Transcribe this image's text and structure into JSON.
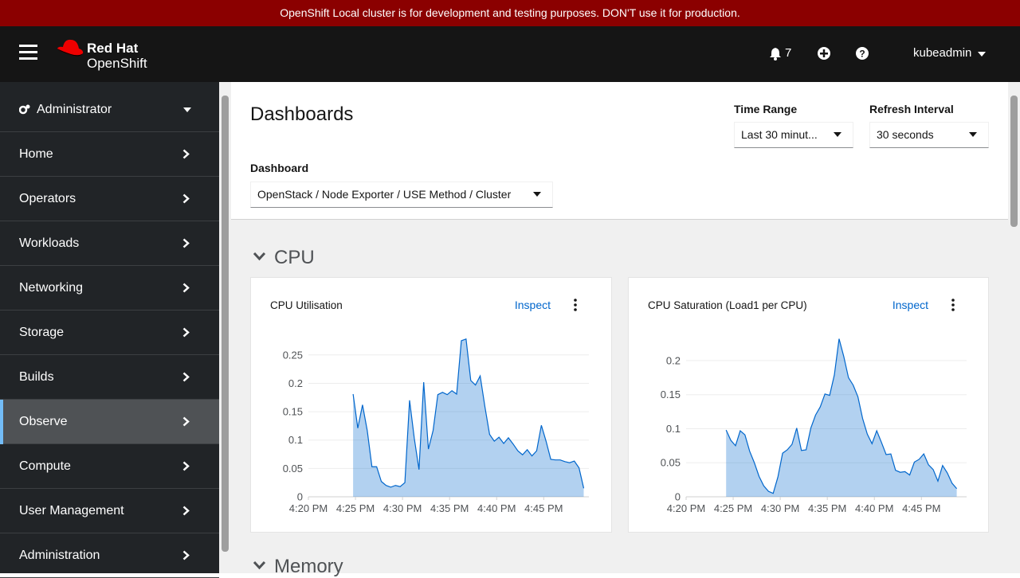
{
  "banner": "OpenShift Local cluster is for development and testing purposes. DON'T use it for production.",
  "header": {
    "brand": [
      "Red Hat",
      "OpenShift"
    ],
    "notifications": 7,
    "user": "kubeadmin"
  },
  "sidebar": {
    "perspective": "Administrator",
    "active_index": 6,
    "nav": [
      "Home",
      "Operators",
      "Workloads",
      "Networking",
      "Storage",
      "Builds",
      "Observe",
      "Compute",
      "User Management",
      "Administration"
    ]
  },
  "page": {
    "title": "Dashboards",
    "time_range": {
      "label": "Time Range",
      "value": "Last 30 minut..."
    },
    "refresh": {
      "label": "Refresh Interval",
      "value": "30 seconds"
    },
    "dashboard": {
      "label": "Dashboard",
      "value": "OpenStack / Node Exporter / USE Method / Cluster"
    }
  },
  "sections": [
    "CPU",
    "Memory"
  ],
  "chart_data": [
    {
      "type": "area",
      "title": "CPU Utilisation",
      "link": "Inspect",
      "color": "#06c",
      "grid": true,
      "x": [
        984.75,
        985.25,
        985.75,
        986.25,
        986.75,
        987.25,
        987.75,
        988.25,
        988.75,
        989.25,
        989.75,
        990.25,
        990.75,
        991.25,
        991.75,
        992.25,
        992.75,
        993.25,
        993.75,
        994.25,
        994.75,
        995.25,
        995.75,
        996.25,
        996.75,
        997.25,
        997.75,
        998.25,
        998.75,
        999.25,
        999.75,
        1000.25,
        1000.75,
        1001.25,
        1001.75,
        1002.25,
        1002.75,
        1003.25,
        1003.75,
        1004.25,
        1004.75,
        1005.25,
        1005.75,
        1006.25,
        1006.75,
        1007.25,
        1007.75,
        1008.25,
        1008.75,
        1009.25
      ],
      "values": [
        0.181,
        0.121,
        0.162,
        0.117,
        0.053,
        0.053,
        0.027,
        0.02,
        0.017,
        0.02,
        0.018,
        0.025,
        0.17,
        0.103,
        0.048,
        0.202,
        0.084,
        0.117,
        0.18,
        0.184,
        0.18,
        0.187,
        0.181,
        0.275,
        0.278,
        0.205,
        0.197,
        0.213,
        0.159,
        0.11,
        0.098,
        0.105,
        0.094,
        0.104,
        0.093,
        0.081,
        0.074,
        0.083,
        0.072,
        0.081,
        0.126,
        0.098,
        0.066,
        0.065,
        0.065,
        0.062,
        0.06,
        0.063,
        0.051,
        0.015
      ],
      "xlim": [
        980,
        1009.8
      ],
      "xticks": [
        {
          "value": 980,
          "label": "4:20 PM"
        },
        {
          "value": 985,
          "label": "4:25 PM"
        },
        {
          "value": 990,
          "label": "4:30 PM"
        },
        {
          "value": 995,
          "label": "4:35 PM"
        },
        {
          "value": 1000,
          "label": "4:40 PM"
        },
        {
          "value": 1005,
          "label": "4:45 PM"
        }
      ],
      "ylim": [
        0,
        0.282
      ],
      "yticks": [
        0,
        0.05,
        0.1,
        0.15,
        0.2,
        0.25
      ]
    },
    {
      "type": "area",
      "title": "CPU Saturation (Load1 per CPU)",
      "link": "Inspect",
      "color": "#06c",
      "grid": true,
      "x": [
        984.25,
        984.75,
        985.25,
        985.75,
        986.25,
        986.75,
        987.25,
        987.75,
        988.25,
        988.75,
        989.25,
        989.75,
        990.25,
        990.75,
        991.25,
        991.75,
        992.25,
        992.75,
        993.25,
        993.75,
        994.25,
        994.75,
        995.25,
        995.75,
        996.25,
        996.75,
        997.25,
        997.75,
        998.25,
        998.75,
        999.25,
        999.75,
        1000.25,
        1000.75,
        1001.25,
        1001.75,
        1002.25,
        1002.75,
        1003.25,
        1003.75,
        1004.25,
        1004.75,
        1005.25,
        1005.75,
        1006.25,
        1006.75,
        1007.25,
        1007.75,
        1008.25,
        1008.75
      ],
      "values": [
        0.098,
        0.083,
        0.075,
        0.097,
        0.091,
        0.067,
        0.05,
        0.03,
        0.016,
        0.008,
        0.005,
        0.029,
        0.064,
        0.069,
        0.077,
        0.101,
        0.068,
        0.069,
        0.101,
        0.12,
        0.132,
        0.151,
        0.149,
        0.179,
        0.232,
        0.206,
        0.175,
        0.164,
        0.147,
        0.115,
        0.092,
        0.078,
        0.097,
        0.08,
        0.062,
        0.063,
        0.039,
        0.036,
        0.037,
        0.032,
        0.051,
        0.055,
        0.063,
        0.047,
        0.04,
        0.023,
        0.046,
        0.035,
        0.02,
        0.012
      ],
      "xlim": [
        980,
        1009.8
      ],
      "xticks": [
        {
          "value": 980,
          "label": "4:20 PM"
        },
        {
          "value": 985,
          "label": "4:25 PM"
        },
        {
          "value": 990,
          "label": "4:30 PM"
        },
        {
          "value": 995,
          "label": "4:35 PM"
        },
        {
          "value": 1000,
          "label": "4:40 PM"
        },
        {
          "value": 1005,
          "label": "4:45 PM"
        }
      ],
      "ylim": [
        0,
        0.235
      ],
      "yticks": [
        0,
        0.05,
        0.1,
        0.15,
        0.2
      ]
    }
  ]
}
